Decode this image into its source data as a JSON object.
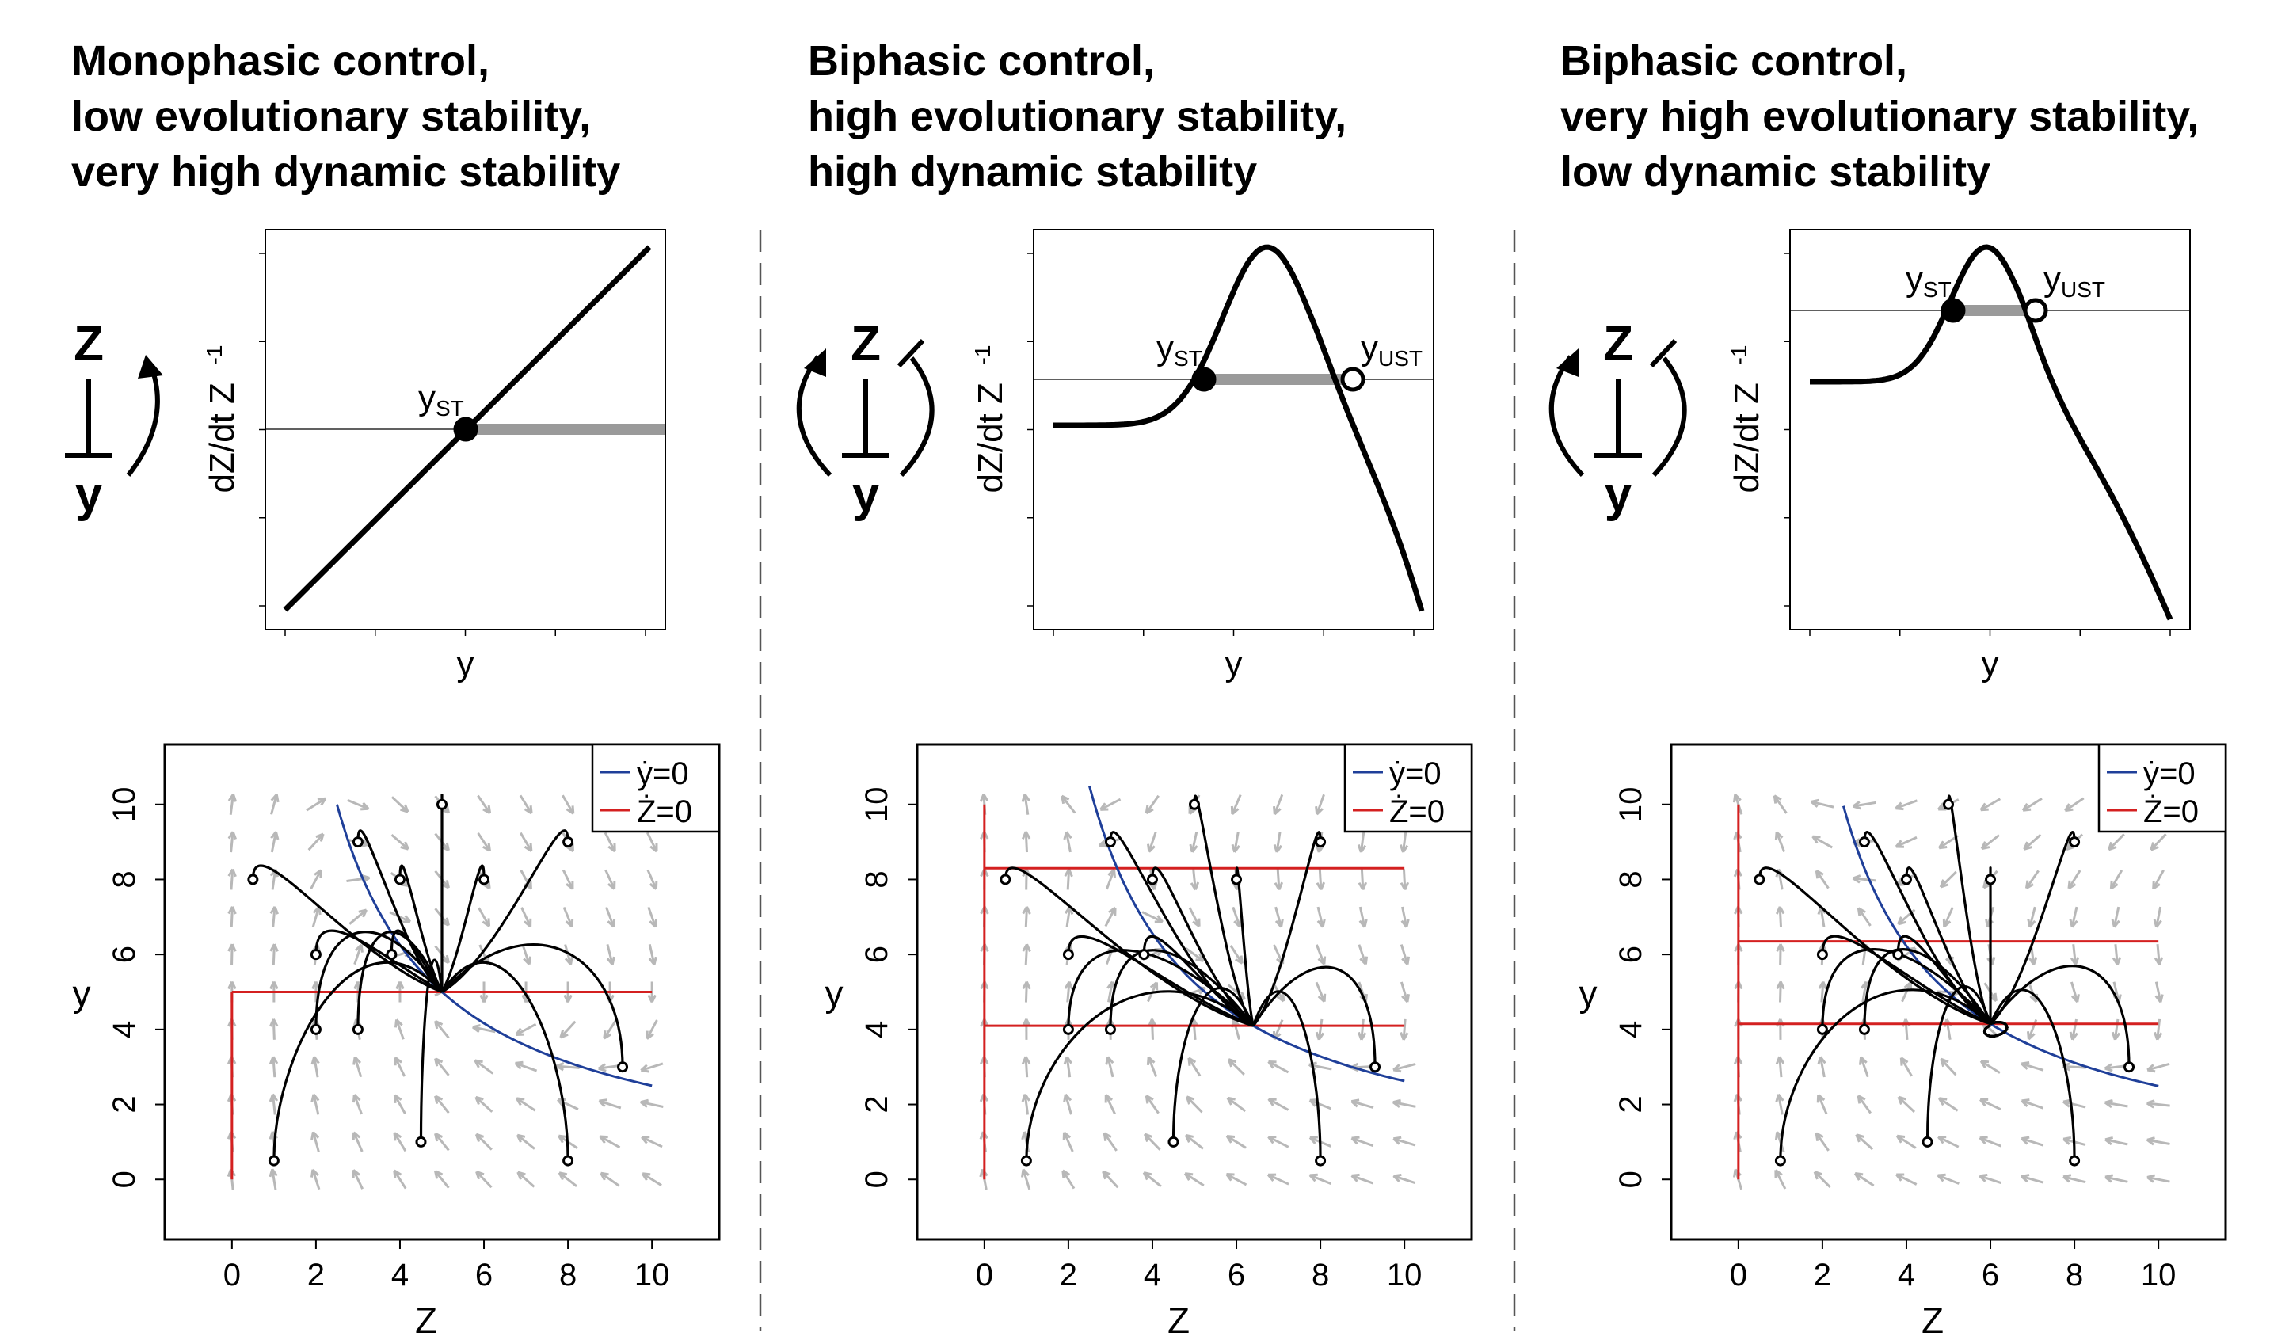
{
  "panels": [
    {
      "title_lines": [
        "Monophasic control,",
        "low evolutionary stability,",
        "very high dynamic stability"
      ],
      "motif": {
        "top": "Z",
        "bottom": "y",
        "type": "monophasic"
      },
      "response": {
        "ylabel": "dZ/dt Z",
        "ylabel_sup": "-1",
        "xlabel": "y",
        "fixed_points": [
          {
            "label": "y",
            "sub": "ST",
            "filled": true
          }
        ]
      },
      "phase": {
        "xlabel": "Z",
        "ylabel": "y",
        "legend": [
          "ẏ=0",
          "Ż=0"
        ],
        "ystar": 5.0,
        "zstar": 5.0,
        "spiral": false
      }
    },
    {
      "title_lines": [
        "Biphasic control,",
        "high evolutionary stability,",
        "high dynamic stability"
      ],
      "motif": {
        "top": "Z",
        "bottom": "y",
        "type": "biphasic"
      },
      "response": {
        "ylabel": "dZ/dt Z",
        "ylabel_sup": "-1",
        "xlabel": "y",
        "fixed_points": [
          {
            "label": "y",
            "sub": "ST",
            "filled": true
          },
          {
            "label": "y",
            "sub": "UST",
            "filled": false
          }
        ]
      },
      "phase": {
        "xlabel": "Z",
        "ylabel": "y",
        "legend": [
          "ẏ=0",
          "Ż=0"
        ],
        "ystar": 4.1,
        "zstar": 6.4,
        "yupper": 8.3,
        "spiral": false
      }
    },
    {
      "title_lines": [
        "Biphasic control,",
        "very high evolutionary stability,",
        "low dynamic stability"
      ],
      "motif": {
        "top": "Z",
        "bottom": "y",
        "type": "biphasic"
      },
      "response": {
        "ylabel": "dZ/dt Z",
        "ylabel_sup": "-1",
        "xlabel": "y",
        "fixed_points": [
          {
            "label": "y",
            "sub": "ST",
            "filled": true
          },
          {
            "label": "y",
            "sub": "UST",
            "filled": false
          }
        ]
      },
      "phase": {
        "xlabel": "Z",
        "ylabel": "y",
        "legend": [
          "ẏ=0",
          "Ż=0"
        ],
        "ystar": 4.15,
        "zstar": 6.0,
        "yupper": 6.35,
        "spiral": true
      }
    }
  ],
  "chart_data": [
    {
      "type": "line",
      "title": "",
      "xlabel": "y",
      "ylabel": "dZ/dt Z-1",
      "shape": "linear increasing",
      "fixed_points": [
        "yST (stable)"
      ]
    },
    {
      "type": "line",
      "title": "",
      "xlabel": "y",
      "ylabel": "dZ/dt Z-1",
      "shape": "hump, rising then falling",
      "fixed_points": [
        "yST (stable)",
        "yUST (unstable)"
      ]
    },
    {
      "type": "line",
      "title": "",
      "xlabel": "y",
      "ylabel": "dZ/dt Z-1",
      "shape": "hump, rising then falling",
      "fixed_points": [
        "yST (stable)",
        "yUST (unstable)"
      ]
    },
    {
      "type": "line",
      "title": "",
      "xlabel": "Z",
      "ylabel": "y",
      "xlim": [
        -1.6,
        11.6
      ],
      "ylim": [
        -1.6,
        11.6
      ],
      "xticks": [
        0,
        2,
        4,
        6,
        8,
        10
      ],
      "yticks": [
        0,
        2,
        4,
        6,
        8,
        10
      ],
      "series": [
        {
          "name": "ẏ=0",
          "color": "#1f3f99"
        },
        {
          "name": "Ż=0",
          "color": "#d42020"
        }
      ],
      "equilibrium": [
        5.0,
        5.0
      ],
      "trajectory_starts": [
        [
          0.5,
          8
        ],
        [
          1,
          0.5
        ],
        [
          2,
          6
        ],
        [
          2,
          4
        ],
        [
          3,
          9
        ],
        [
          3,
          4
        ],
        [
          4,
          8
        ],
        [
          3.8,
          6
        ],
        [
          4.5,
          1
        ],
        [
          5,
          10
        ],
        [
          6,
          8
        ],
        [
          8,
          9
        ],
        [
          8,
          0.5
        ],
        [
          9.3,
          3
        ]
      ]
    },
    {
      "type": "line",
      "title": "",
      "xlabel": "Z",
      "ylabel": "y",
      "xlim": [
        -1.6,
        11.6
      ],
      "ylim": [
        -1.6,
        11.6
      ],
      "xticks": [
        0,
        2,
        4,
        6,
        8,
        10
      ],
      "yticks": [
        0,
        2,
        4,
        6,
        8,
        10
      ],
      "series": [
        {
          "name": "ẏ=0",
          "color": "#1f3f99"
        },
        {
          "name": "Ż=0",
          "color": "#d42020"
        }
      ],
      "equilibrium": [
        6.4,
        4.1
      ],
      "trajectory_starts": [
        [
          0.5,
          8
        ],
        [
          1,
          0.5
        ],
        [
          2,
          6
        ],
        [
          2,
          4
        ],
        [
          3,
          9
        ],
        [
          3,
          4
        ],
        [
          4,
          8
        ],
        [
          3.8,
          6
        ],
        [
          4.5,
          1
        ],
        [
          5,
          10
        ],
        [
          6,
          8
        ],
        [
          8,
          9
        ],
        [
          8,
          0.5
        ],
        [
          9.3,
          3
        ]
      ]
    },
    {
      "type": "line",
      "title": "",
      "xlabel": "Z",
      "ylabel": "y",
      "xlim": [
        -1.6,
        11.6
      ],
      "ylim": [
        -1.6,
        11.6
      ],
      "xticks": [
        0,
        2,
        4,
        6,
        8,
        10
      ],
      "yticks": [
        0,
        2,
        4,
        6,
        8,
        10
      ],
      "series": [
        {
          "name": "ẏ=0",
          "color": "#1f3f99"
        },
        {
          "name": "Ż=0",
          "color": "#d42020"
        }
      ],
      "equilibrium": [
        6.0,
        4.15
      ],
      "trajectory_starts": [
        [
          0.5,
          8
        ],
        [
          1,
          0.5
        ],
        [
          2,
          6
        ],
        [
          2,
          4
        ],
        [
          3,
          9
        ],
        [
          3,
          4
        ],
        [
          4,
          8
        ],
        [
          3.8,
          6
        ],
        [
          4.5,
          1
        ],
        [
          5,
          10
        ],
        [
          6,
          8
        ],
        [
          8,
          9
        ],
        [
          8,
          0.5
        ],
        [
          9.3,
          3
        ]
      ]
    }
  ]
}
